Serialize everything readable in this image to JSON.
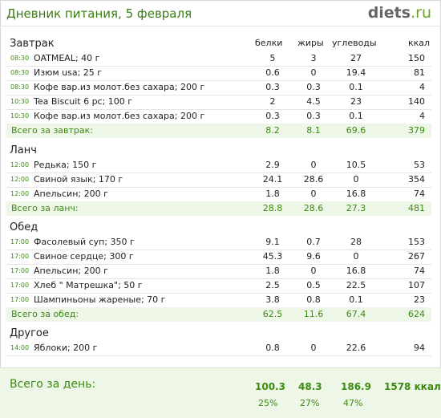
{
  "header": {
    "title": "Дневник питания, 5 февраля",
    "logo_main": "diets",
    "logo_tld": ".ru"
  },
  "columns": {
    "protein": "белки",
    "fat": "жиры",
    "carbs": "углеводы",
    "kcal": "ккал"
  },
  "meals": [
    {
      "title": "Завтрак",
      "items": [
        {
          "time": "08:30",
          "name": "OATMEAL; 40 г",
          "protein": "5",
          "fat": "3",
          "carbs": "27",
          "kcal": "150"
        },
        {
          "time": "08:30",
          "name": "Изюм usa; 25 г",
          "protein": "0.6",
          "fat": "0",
          "carbs": "19.4",
          "kcal": "81"
        },
        {
          "time": "08:30",
          "name": "Кофе вар.из молот.без сахара; 200 г",
          "protein": "0.3",
          "fat": "0.3",
          "carbs": "0.1",
          "kcal": "4"
        },
        {
          "time": "10:30",
          "name": "Tea Biscuit 6 pc; 100 г",
          "protein": "2",
          "fat": "4.5",
          "carbs": "23",
          "kcal": "140"
        },
        {
          "time": "10:30",
          "name": "Кофе вар.из молот.без сахара; 200 г",
          "protein": "0.3",
          "fat": "0.3",
          "carbs": "0.1",
          "kcal": "4"
        }
      ],
      "total": {
        "label": "Всего за завтрак:",
        "protein": "8.2",
        "fat": "8.1",
        "carbs": "69.6",
        "kcal": "379"
      }
    },
    {
      "title": "Ланч",
      "items": [
        {
          "time": "12:00",
          "name": "Редька; 150 г",
          "protein": "2.9",
          "fat": "0",
          "carbs": "10.5",
          "kcal": "53"
        },
        {
          "time": "12:00",
          "name": "Свиной язык; 170 г",
          "protein": "24.1",
          "fat": "28.6",
          "carbs": "0",
          "kcal": "354"
        },
        {
          "time": "12:00",
          "name": "Апельсин; 200 г",
          "protein": "1.8",
          "fat": "0",
          "carbs": "16.8",
          "kcal": "74"
        }
      ],
      "total": {
        "label": "Всего за ланч:",
        "protein": "28.8",
        "fat": "28.6",
        "carbs": "27.3",
        "kcal": "481"
      }
    },
    {
      "title": "Обед",
      "items": [
        {
          "time": "17:00",
          "name": "Фасолевый суп; 350 г",
          "protein": "9.1",
          "fat": "0.7",
          "carbs": "28",
          "kcal": "153"
        },
        {
          "time": "17:00",
          "name": "Свиное сердце; 300 г",
          "protein": "45.3",
          "fat": "9.6",
          "carbs": "0",
          "kcal": "267"
        },
        {
          "time": "17:00",
          "name": "Апельсин; 200 г",
          "protein": "1.8",
          "fat": "0",
          "carbs": "16.8",
          "kcal": "74"
        },
        {
          "time": "17:00",
          "name": "Хлеб \" Матрешка\"; 50 г",
          "protein": "2.5",
          "fat": "0.5",
          "carbs": "22.5",
          "kcal": "107"
        },
        {
          "time": "17:00",
          "name": "Шампиньоны жареные; 70 г",
          "protein": "3.8",
          "fat": "0.8",
          "carbs": "0.1",
          "kcal": "23"
        }
      ],
      "total": {
        "label": "Всего за обед:",
        "protein": "62.5",
        "fat": "11.6",
        "carbs": "67.4",
        "kcal": "624"
      }
    },
    {
      "title": "Другое",
      "items": [
        {
          "time": "14:00",
          "name": "Яблоки; 200 г",
          "protein": "0.8",
          "fat": "0",
          "carbs": "22.6",
          "kcal": "94"
        }
      ]
    }
  ],
  "day_total": {
    "label": "Всего за день:",
    "protein": "100.3",
    "fat": "48.3",
    "carbs": "186.9",
    "kcal": "1578 ккал",
    "protein_pct": "25%",
    "fat_pct": "27%",
    "carbs_pct": "47%"
  }
}
